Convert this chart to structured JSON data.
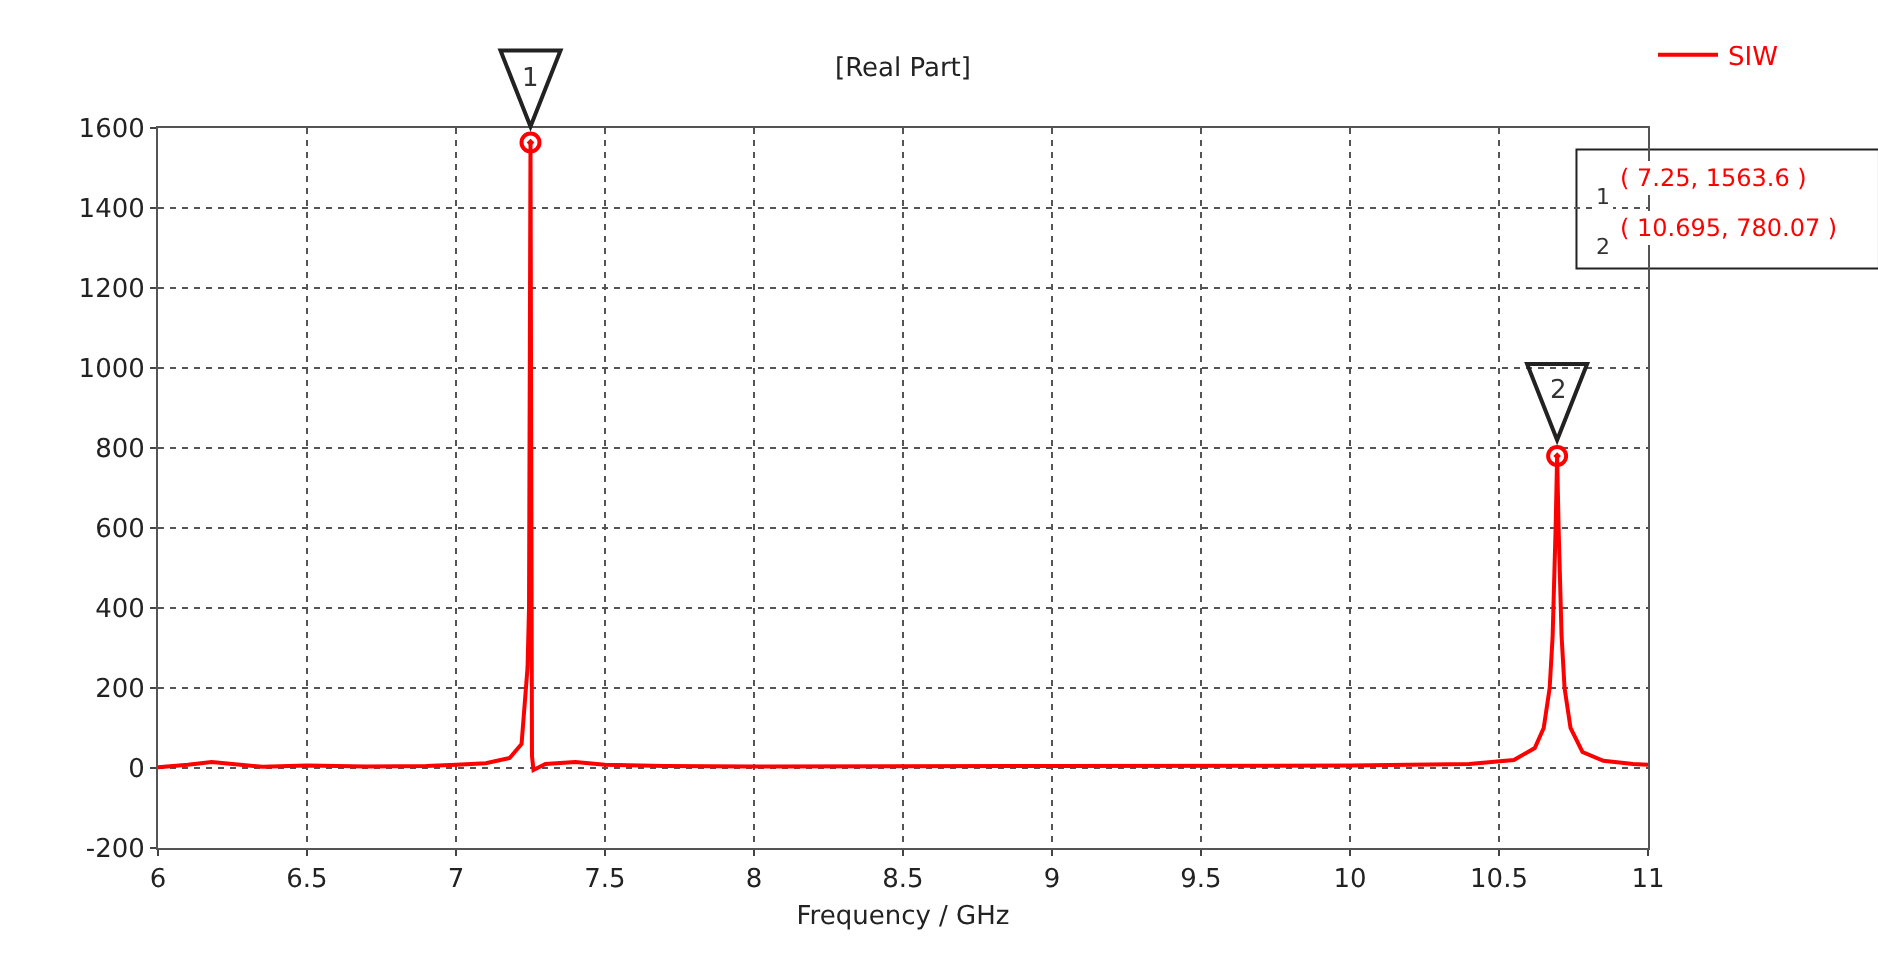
{
  "chart_data": {
    "type": "line",
    "title": "[Real Part]",
    "xlabel": "Frequency / GHz",
    "x": [
      6,
      6.1,
      6.18,
      6.25,
      6.35,
      6.5,
      6.7,
      6.9,
      7.0,
      7.1,
      7.18,
      7.22,
      7.24,
      7.245,
      7.25,
      7.255,
      7.26,
      7.3,
      7.4,
      7.5,
      7.7,
      8,
      9,
      10,
      10.4,
      10.55,
      10.62,
      10.65,
      10.67,
      10.68,
      10.69,
      10.695,
      10.7,
      10.71,
      10.72,
      10.74,
      10.78,
      10.85,
      10.95,
      11
    ],
    "series": [
      {
        "name": "SIW",
        "color": "#ff0000",
        "values": [
          2,
          8,
          15,
          10,
          3,
          6,
          4,
          5,
          8,
          12,
          25,
          60,
          250,
          400,
          1563.6,
          30,
          -5,
          10,
          15,
          8,
          5,
          4,
          5,
          6,
          10,
          20,
          50,
          100,
          200,
          330,
          600,
          780.07,
          600,
          330,
          200,
          100,
          40,
          18,
          10,
          8
        ]
      }
    ],
    "xlim": [
      6,
      11
    ],
    "xticks": [
      6,
      6.5,
      7,
      7.5,
      8,
      8.5,
      9,
      9.5,
      10,
      10.5,
      11
    ],
    "ylim": [
      -200,
      1600
    ],
    "yticks": [
      -200,
      0,
      200,
      400,
      600,
      800,
      1000,
      1200,
      1400,
      1600
    ],
    "grid": true,
    "legend": "top right",
    "marker": "none",
    "line_style": "solid",
    "annotations": [
      {
        "text": "1",
        "x": 7.25,
        "y": 1563.6
      },
      {
        "text": "2",
        "x": 10.695,
        "y": 780.07
      },
      "( 7.25, 1563.6 )",
      "( 10.695, 780.07 )"
    ]
  }
}
